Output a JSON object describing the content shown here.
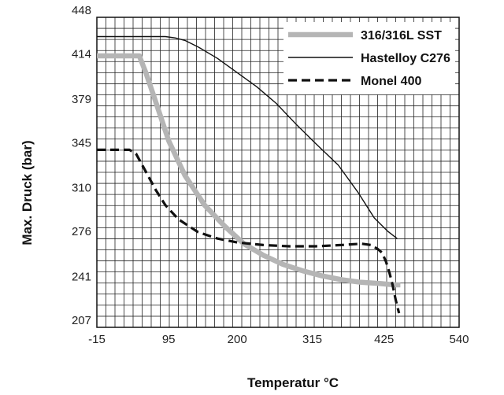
{
  "chart_data": {
    "type": "line",
    "title": "",
    "xlabel": "Temperatur °C",
    "ylabel": "Max. Druck (bar)",
    "xlim": [
      -15,
      540
    ],
    "ylim": [
      207,
      448
    ],
    "x_ticks": [
      "-15",
      "95",
      "200",
      "315",
      "425",
      "540"
    ],
    "y_ticks": [
      "207",
      "241",
      "276",
      "310",
      "345",
      "379",
      "414",
      "448"
    ],
    "grid": "on",
    "legend_placement": "top-right",
    "series": [
      {
        "name": "316/316L SST",
        "style": "thick-gray",
        "color": "#b5b5b5",
        "points": [
          [
            -15,
            418
          ],
          [
            5,
            418
          ],
          [
            22,
            418
          ],
          [
            40,
            418
          ],
          [
            50,
            418
          ],
          [
            60,
            405
          ],
          [
            70,
            390
          ],
          [
            80,
            375
          ],
          [
            95,
            352
          ],
          [
            120,
            325
          ],
          [
            150,
            302
          ],
          [
            180,
            286
          ],
          [
            210,
            272
          ],
          [
            240,
            263
          ],
          [
            270,
            256
          ],
          [
            300,
            251
          ],
          [
            330,
            247
          ],
          [
            360,
            244
          ],
          [
            390,
            242
          ],
          [
            420,
            241
          ],
          [
            440,
            240
          ],
          [
            450,
            240
          ]
        ]
      },
      {
        "name": "Hastelloy C276",
        "style": "thin-solid",
        "color": "#111111",
        "points": [
          [
            -15,
            433
          ],
          [
            40,
            433
          ],
          [
            90,
            433
          ],
          [
            105,
            432
          ],
          [
            120,
            430
          ],
          [
            140,
            425
          ],
          [
            170,
            416
          ],
          [
            200,
            405
          ],
          [
            230,
            394
          ],
          [
            260,
            381
          ],
          [
            290,
            365
          ],
          [
            320,
            350
          ],
          [
            355,
            333
          ],
          [
            385,
            312
          ],
          [
            410,
            292
          ],
          [
            430,
            282
          ],
          [
            445,
            276
          ]
        ]
      },
      {
        "name": "Monel 400",
        "style": "dashed",
        "color": "#111111",
        "points": [
          [
            -15,
            345
          ],
          [
            20,
            345
          ],
          [
            35,
            345
          ],
          [
            45,
            342
          ],
          [
            60,
            328
          ],
          [
            75,
            314
          ],
          [
            90,
            302
          ],
          [
            110,
            291
          ],
          [
            140,
            281
          ],
          [
            170,
            276
          ],
          [
            200,
            273
          ],
          [
            240,
            271
          ],
          [
            280,
            270
          ],
          [
            320,
            270
          ],
          [
            360,
            271
          ],
          [
            390,
            272
          ],
          [
            405,
            271
          ],
          [
            415,
            268
          ],
          [
            422,
            265
          ],
          [
            428,
            258
          ],
          [
            433,
            250
          ],
          [
            438,
            240
          ],
          [
            443,
            228
          ],
          [
            448,
            218
          ]
        ]
      }
    ]
  }
}
